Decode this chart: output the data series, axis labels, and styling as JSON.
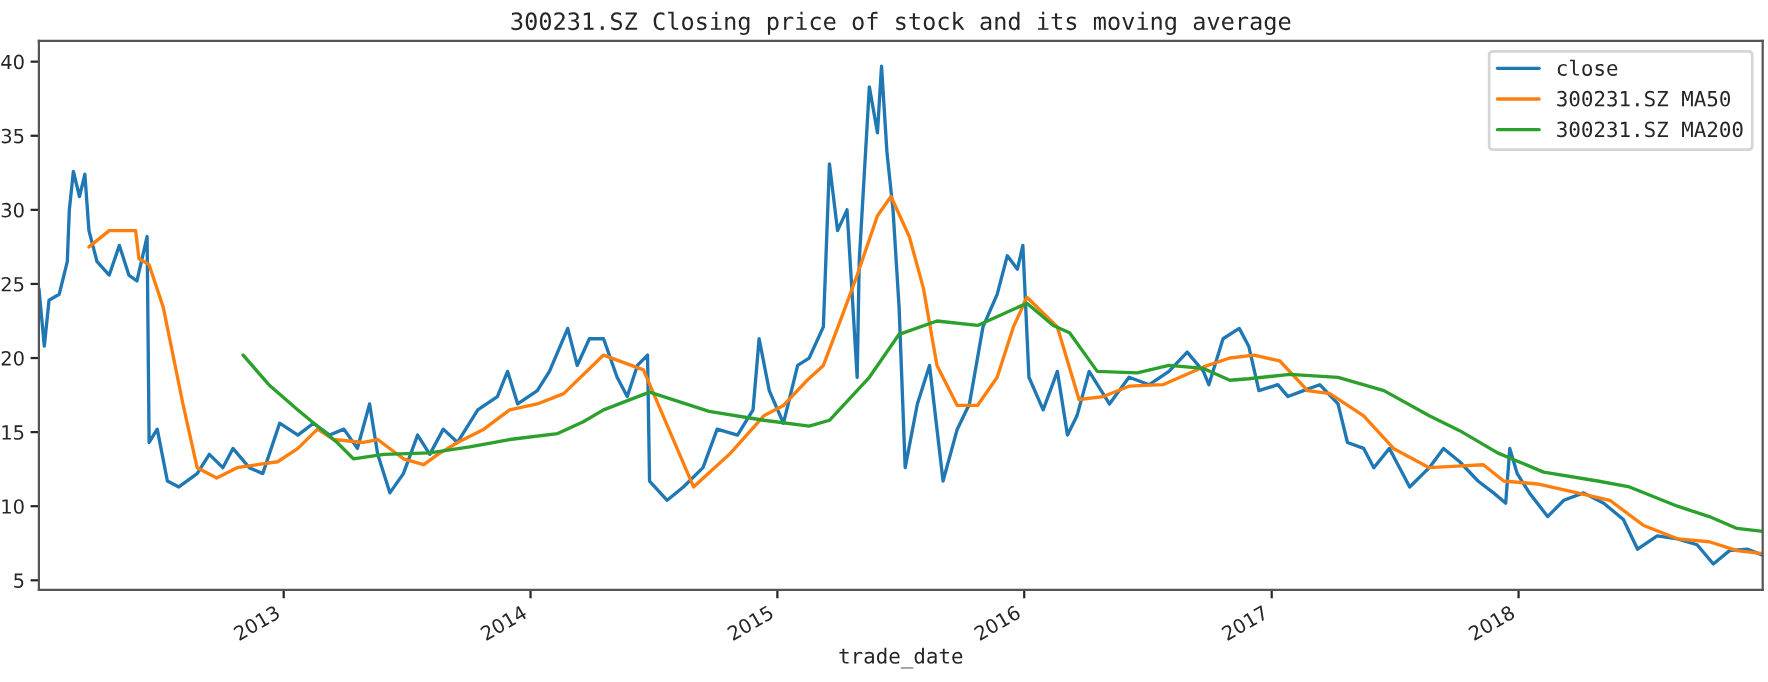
{
  "chart_data": {
    "type": "line",
    "title": "300231.SZ Closing price of stock and its moving average",
    "xlabel": "trade_date",
    "xlim": [
      "2012-01-05",
      "2018-12-28"
    ],
    "ylim": [
      4.35,
      41.4
    ],
    "xticks": [
      {
        "value": "2013-01-01",
        "label": "2013"
      },
      {
        "value": "2014-01-01",
        "label": "2014"
      },
      {
        "value": "2015-01-01",
        "label": "2015"
      },
      {
        "value": "2016-01-01",
        "label": "2016"
      },
      {
        "value": "2017-01-01",
        "label": "2017"
      },
      {
        "value": "2018-01-01",
        "label": "2018"
      }
    ],
    "yticks": [
      5,
      10,
      15,
      20,
      25,
      30,
      35,
      40
    ],
    "grid": false,
    "legend": "top right",
    "line_style": "solid",
    "series": [
      {
        "name": "close",
        "color": "#1f77b4",
        "x": [
          "2012-01-05",
          "2012-01-13",
          "2012-01-20",
          "2012-02-04",
          "2012-02-16",
          "2012-02-19",
          "2012-02-25",
          "2012-03-05",
          "2012-03-13",
          "2012-03-19",
          "2012-03-31",
          "2012-04-18",
          "2012-05-03",
          "2012-05-17",
          "2012-05-29",
          "2012-06-07",
          "2012-06-13",
          "2012-06-16",
          "2012-06-28",
          "2012-07-13",
          "2012-07-30",
          "2012-08-26",
          "2012-09-13",
          "2012-10-03",
          "2012-10-18",
          "2012-11-11",
          "2012-12-01",
          "2012-12-26",
          "2013-01-22",
          "2013-02-14",
          "2013-03-10",
          "2013-03-31",
          "2013-04-20",
          "2013-05-08",
          "2013-05-20",
          "2013-06-07",
          "2013-06-27",
          "2013-07-18",
          "2013-08-05",
          "2013-08-25",
          "2013-09-15",
          "2013-10-15",
          "2013-11-13",
          "2013-11-28",
          "2013-12-13",
          "2014-01-11",
          "2014-01-29",
          "2014-02-25",
          "2014-03-11",
          "2014-03-29",
          "2014-04-19",
          "2014-05-09",
          "2014-05-24",
          "2014-06-08",
          "2014-06-23",
          "2014-06-26",
          "2014-07-22",
          "2014-08-15",
          "2014-09-13",
          "2014-10-04",
          "2014-11-03",
          "2014-11-26",
          "2014-12-05",
          "2014-12-20",
          "2015-01-10",
          "2015-01-31",
          "2015-02-17",
          "2015-03-10",
          "2015-03-19",
          "2015-03-31",
          "2015-04-14",
          "2015-04-29",
          "2015-05-02",
          "2015-05-17",
          "2015-05-29",
          "2015-06-04",
          "2015-06-12",
          "2015-06-21",
          "2015-06-30",
          "2015-07-09",
          "2015-07-27",
          "2015-08-14",
          "2015-09-03",
          "2015-09-24",
          "2015-10-12",
          "2015-11-01",
          "2015-11-22",
          "2015-12-07",
          "2015-12-22",
          "2015-12-30",
          "2016-01-08",
          "2016-01-29",
          "2016-02-19",
          "2016-03-05",
          "2016-03-19",
          "2016-04-06",
          "2016-05-06",
          "2016-06-04",
          "2016-07-04",
          "2016-08-02",
          "2016-08-29",
          "2016-09-22",
          "2016-09-30",
          "2016-10-21",
          "2016-11-14",
          "2016-11-28",
          "2016-12-13",
          "2017-01-10",
          "2017-01-25",
          "2017-02-17",
          "2017-03-13",
          "2017-04-09",
          "2017-04-23",
          "2017-05-17",
          "2017-06-01",
          "2017-06-24",
          "2017-07-24",
          "2017-08-22",
          "2017-09-12",
          "2017-10-06",
          "2017-11-02",
          "2017-11-25",
          "2017-12-13",
          "2017-12-19",
          "2017-12-30",
          "2018-01-17",
          "2018-02-13",
          "2018-03-09",
          "2018-04-07",
          "2018-05-07",
          "2018-06-05",
          "2018-06-26",
          "2018-07-25",
          "2018-08-24",
          "2018-09-22",
          "2018-10-16",
          "2018-11-09",
          "2018-12-05",
          "2018-12-28"
        ],
        "values": [
          24.7,
          20.8,
          23.9,
          24.3,
          26.5,
          30,
          32.6,
          30.9,
          32.4,
          28.6,
          26.5,
          25.6,
          27.6,
          25.6,
          25.2,
          27,
          28.2,
          14.3,
          15.2,
          11.7,
          11.3,
          12.2,
          13.5,
          12.6,
          13.9,
          12.6,
          12.2,
          15.6,
          14.8,
          15.6,
          14.8,
          15.2,
          13.9,
          16.9,
          13.5,
          10.9,
          12.2,
          14.8,
          13.5,
          15.2,
          14.3,
          16.5,
          17.4,
          19.1,
          16.9,
          17.8,
          19.1,
          22,
          19.5,
          21.3,
          21.3,
          18.7,
          17.4,
          19.5,
          20.2,
          11.7,
          10.4,
          11.3,
          12.6,
          15.2,
          14.8,
          16.5,
          21.3,
          17.8,
          15.6,
          19.5,
          20,
          22.1,
          33.1,
          28.6,
          30,
          18.7,
          26.5,
          38.3,
          35.2,
          39.7,
          33.9,
          30,
          23.4,
          12.6,
          16.9,
          19.5,
          11.7,
          15.2,
          16.9,
          22.1,
          24.3,
          26.9,
          26,
          27.6,
          18.7,
          16.5,
          19.1,
          14.8,
          16.1,
          19.1,
          16.9,
          18.7,
          18.2,
          19.1,
          20.4,
          19.1,
          18.2,
          21.3,
          22,
          20.8,
          17.8,
          18.2,
          17.4,
          17.8,
          18.2,
          16.9,
          14.3,
          13.9,
          12.6,
          13.9,
          11.3,
          12.6,
          13.9,
          13,
          11.7,
          10.9,
          10.2,
          13.9,
          12.2,
          10.9,
          9.3,
          10.4,
          10.9,
          10.2,
          9.1,
          7.1,
          8,
          7.8,
          7.4,
          6.1,
          7,
          7.1,
          6.7
        ]
      },
      {
        "name": "300231.SZ MA50",
        "color": "#ff7f0e",
        "x": [
          "2012-03-19",
          "2012-04-18",
          "2012-05-27",
          "2012-06-01",
          "2012-06-16",
          "2012-07-07",
          "2012-08-05",
          "2012-08-26",
          "2012-09-24",
          "2012-10-24",
          "2012-11-23",
          "2012-12-23",
          "2013-01-22",
          "2013-02-20",
          "2013-03-16",
          "2013-04-29",
          "2013-05-20",
          "2013-06-27",
          "2013-07-27",
          "2013-08-17",
          "2013-09-15",
          "2013-10-24",
          "2013-12-01",
          "2014-01-11",
          "2014-02-19",
          "2014-04-19",
          "2014-06-17",
          "2014-08-30",
          "2014-10-22",
          "2014-12-12",
          "2015-01-10",
          "2015-02-14",
          "2015-03-10",
          "2015-04-08",
          "2015-04-29",
          "2015-05-29",
          "2015-06-18",
          "2015-07-15",
          "2015-08-05",
          "2015-08-25",
          "2015-09-24",
          "2015-10-24",
          "2015-11-22",
          "2015-12-16",
          "2016-01-05",
          "2016-02-19",
          "2016-03-22",
          "2016-04-27",
          "2016-06-04",
          "2016-07-24",
          "2016-09-22",
          "2016-10-31",
          "2016-12-06",
          "2017-01-13",
          "2017-02-23",
          "2017-03-28",
          "2017-05-17",
          "2017-06-30",
          "2017-08-22",
          "2017-10-02",
          "2017-11-10",
          "2017-12-10",
          "2018-01-29",
          "2018-03-29",
          "2018-05-16",
          "2018-07-05",
          "2018-08-24",
          "2018-10-10",
          "2018-11-20",
          "2018-12-28"
        ],
        "values": [
          27.5,
          28.6,
          28.6,
          26.7,
          26.3,
          23.4,
          16.9,
          12.6,
          11.9,
          12.6,
          12.8,
          13,
          13.9,
          15.2,
          14.5,
          14.3,
          14.5,
          13.2,
          12.8,
          13.5,
          14.3,
          15.2,
          16.5,
          16.9,
          17.6,
          20.2,
          19.2,
          11.3,
          13.5,
          16.1,
          16.8,
          18.5,
          19.5,
          23,
          25.6,
          29.6,
          30.9,
          28.2,
          24.7,
          19.5,
          16.8,
          16.8,
          18.7,
          22.1,
          24.1,
          22.1,
          17.2,
          17.4,
          18.1,
          18.2,
          19.4,
          20,
          20.2,
          19.8,
          17.8,
          17.6,
          16.1,
          13.9,
          12.6,
          12.7,
          12.8,
          11.7,
          11.5,
          10.9,
          10.4,
          8.7,
          7.8,
          7.6,
          7,
          6.8
        ]
      },
      {
        "name": "300231.SZ MA200",
        "color": "#2ca02c",
        "x": [
          "2012-11-02",
          "2012-12-10",
          "2013-01-22",
          "2013-02-20",
          "2013-03-21",
          "2013-04-14",
          "2013-05-29",
          "2013-08-05",
          "2013-10-03",
          "2013-12-01",
          "2014-02-10",
          "2014-03-20",
          "2014-04-19",
          "2014-06-26",
          "2014-09-22",
          "2014-12-12",
          "2015-02-17",
          "2015-03-19",
          "2015-05-17",
          "2015-06-30",
          "2015-08-25",
          "2015-10-24",
          "2016-01-05",
          "2016-02-13",
          "2016-03-08",
          "2016-04-18",
          "2016-06-16",
          "2016-08-02",
          "2016-09-22",
          "2016-10-31",
          "2016-11-28",
          "2017-01-28",
          "2017-04-09",
          "2017-06-16",
          "2017-08-22",
          "2017-10-06",
          "2017-12-01",
          "2018-02-07",
          "2018-04-28",
          "2018-06-14",
          "2018-08-24",
          "2018-10-10",
          "2018-11-20",
          "2018-12-28"
        ],
        "values": [
          20.2,
          18.2,
          16.5,
          15.4,
          14.3,
          13.2,
          13.5,
          13.6,
          14,
          14.5,
          14.9,
          15.7,
          16.5,
          17.7,
          16.4,
          15.8,
          15.4,
          15.8,
          18.7,
          21.6,
          22.5,
          22.2,
          23.7,
          22.2,
          21.7,
          19.1,
          19,
          19.5,
          19.3,
          18.5,
          18.6,
          18.9,
          18.7,
          17.8,
          16.1,
          15.1,
          13.6,
          12.3,
          11.7,
          11.3,
          10,
          9.3,
          8.5,
          8.3
        ]
      }
    ]
  }
}
